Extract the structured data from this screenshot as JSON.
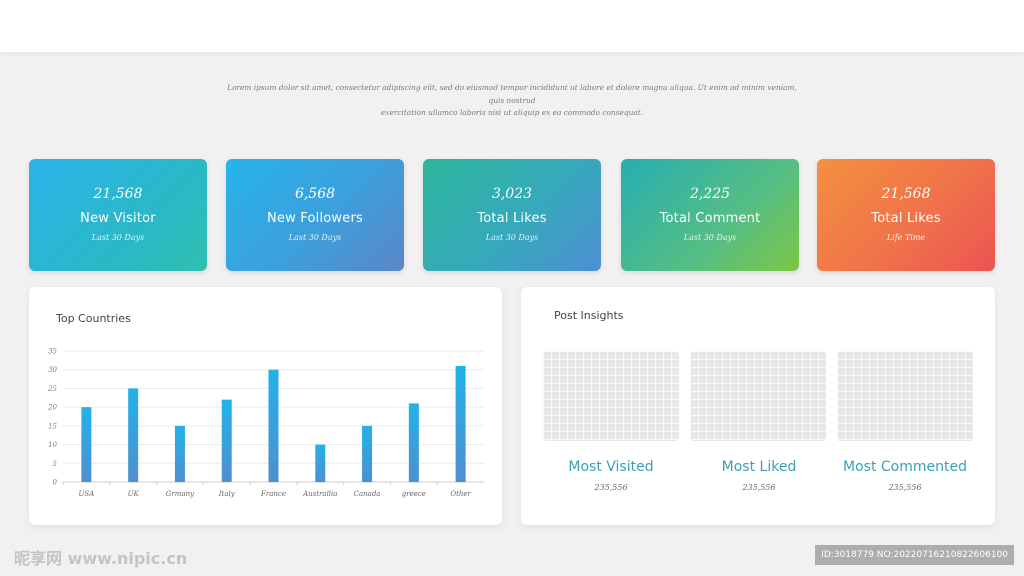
{
  "intro": {
    "line1": "Lorem ipsum dolor sit amet, consectetur adipiscing elit, sed do eiusmod tempor incididunt ut labore et dolore magna aliqua. Ut enim ad minim veniam, quis nostrud",
    "line2": "exercitation ullamco laboris nisi ut aliquip ex ea commodo consequat."
  },
  "stats": [
    {
      "value": "21,568",
      "label": "New Visitor",
      "sub": "Last 30 Days"
    },
    {
      "value": "6,568",
      "label": "New Followers",
      "sub": "Last 30 Days"
    },
    {
      "value": "3,023",
      "label": "Total Likes",
      "sub": "Last 30 Days"
    },
    {
      "value": "2,225",
      "label": "Total Comment",
      "sub": "Last 30 Days"
    },
    {
      "value": "21,568",
      "label": "Total Likes",
      "sub": "Life Time"
    }
  ],
  "countries": {
    "title": "Top Countries"
  },
  "chart_data": {
    "type": "bar",
    "title": "Top Countries",
    "categories": [
      "USA",
      "UK",
      "Grmany",
      "Italy",
      "France",
      "Australlia",
      "Canada",
      "greece",
      "Other"
    ],
    "values": [
      20,
      25,
      15,
      22,
      30,
      10,
      15,
      21,
      31
    ],
    "yticks": [
      "0",
      "5",
      "10",
      "15",
      "20",
      "25",
      "30",
      "35"
    ],
    "ylim": [
      0,
      35
    ],
    "xlabel": "",
    "ylabel": "",
    "grid": true,
    "bar_color": "#3aa3e0"
  },
  "insights": {
    "title": "Post Insights",
    "items": [
      {
        "name": "Most Visited",
        "value": "235,556"
      },
      {
        "name": "Most Liked",
        "value": "235,556"
      },
      {
        "name": "Most Commented",
        "value": "235,556"
      }
    ]
  },
  "watermark": {
    "logo": "昵享网 www.nipic.cn",
    "id": "ID:3018779 NO:20220716210822606100"
  }
}
